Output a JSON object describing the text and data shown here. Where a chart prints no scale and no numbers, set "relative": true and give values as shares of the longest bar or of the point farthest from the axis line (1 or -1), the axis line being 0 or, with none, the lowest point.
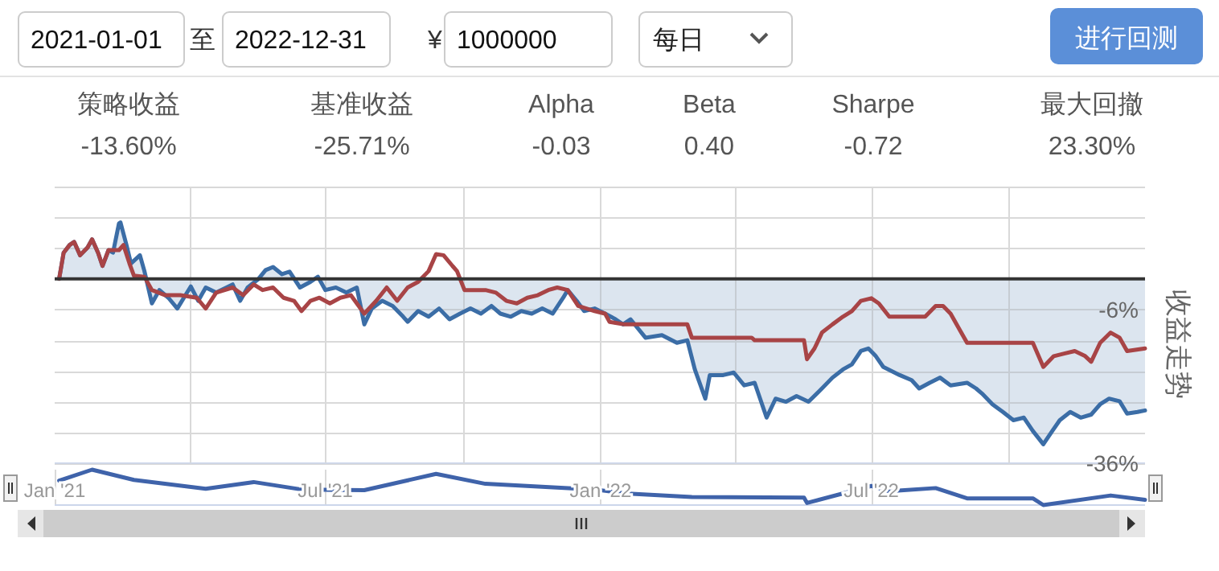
{
  "chart_data": [
    {
      "type": "other",
      "annotations": [
        "2021-01-01",
        "至",
        "2022-12-31",
        "¥",
        "1000000",
        "每日",
        "进行回测"
      ]
    },
    {
      "type": "other",
      "annotations": [
        "策略收益",
        "-13.60%",
        "基准收益",
        "-25.71%",
        "Alpha",
        "-0.03",
        "Beta",
        "0.40",
        "Sharpe",
        "-0.72",
        "最大回撤",
        "23.30%"
      ]
    },
    {
      "type": "line",
      "ylabel": "收益走势",
      "grid": true,
      "tick_labels": "y",
      "xlim": [
        "2021-01-01",
        "2022-12-31"
      ],
      "xticks": [
        {
          "value": "2021-04-01",
          "label": null
        },
        {
          "value": "2021-07-01",
          "label": null
        },
        {
          "value": "2021-10-01",
          "label": null
        },
        {
          "value": "2022-01-01",
          "label": null
        },
        {
          "value": "2022-04-01",
          "label": null
        },
        {
          "value": "2022-07-01",
          "label": null
        },
        {
          "value": "2022-10-01",
          "label": null
        }
      ],
      "ylim": [
        -36,
        18
      ],
      "yticks": [
        {
          "value": 18,
          "label": null
        },
        {
          "value": 12,
          "label": null
        },
        {
          "value": 6,
          "label": null
        },
        {
          "value": 0,
          "label": null
        },
        {
          "value": -6,
          "label": "-6%"
        },
        {
          "value": -12,
          "label": null
        },
        {
          "value": -18,
          "label": null
        },
        {
          "value": -24,
          "label": null
        },
        {
          "value": -30,
          "label": null
        },
        {
          "value": -36,
          "label": "-36%"
        }
      ],
      "ref_lines": [
        {
          "axis": "y",
          "value": 0,
          "color": "#333333"
        }
      ],
      "series": [
        {
          "type": "area",
          "color": "#3b6da6",
          "x": [
            "2021-01-04",
            "2021-01-07",
            "2021-01-11",
            "2021-01-14",
            "2021-01-18",
            "2021-01-23",
            "2021-01-26",
            "2021-01-30",
            "2021-02-02",
            "2021-02-06",
            "2021-02-09",
            "2021-02-13",
            "2021-02-14",
            "2021-02-18",
            "2021-02-21",
            "2021-02-27",
            "2021-03-02",
            "2021-03-07",
            "2021-03-12",
            "2021-03-18",
            "2021-03-24",
            "2021-04-02",
            "2021-04-07",
            "2021-04-12",
            "2021-04-19",
            "2021-04-30",
            "2021-05-05",
            "2021-05-10",
            "2021-05-17",
            "2021-05-22",
            "2021-05-27",
            "2021-06-02",
            "2021-06-07",
            "2021-06-14",
            "2021-06-21",
            "2021-06-26",
            "2021-07-01",
            "2021-07-08",
            "2021-07-15",
            "2021-07-22",
            "2021-07-27",
            "2021-08-01",
            "2021-08-08",
            "2021-08-15",
            "2021-08-22",
            "2021-08-25",
            "2021-09-01",
            "2021-09-08",
            "2021-09-15",
            "2021-09-22",
            "2021-09-29",
            "2021-10-06",
            "2021-10-13",
            "2021-10-20",
            "2021-10-26",
            "2021-11-02",
            "2021-11-09",
            "2021-11-16",
            "2021-11-23",
            "2021-11-30",
            "2021-12-07",
            "2021-12-10",
            "2021-12-16",
            "2021-12-21",
            "2021-12-28",
            "2022-01-04",
            "2022-01-11",
            "2022-01-16",
            "2022-01-21",
            "2022-01-31",
            "2022-02-11",
            "2022-02-21",
            "2022-02-28",
            "2022-03-05",
            "2022-03-12",
            "2022-03-15",
            "2022-03-24",
            "2022-03-31",
            "2022-04-07",
            "2022-04-14",
            "2022-04-22",
            "2022-04-28",
            "2022-05-05",
            "2022-05-12",
            "2022-05-20",
            "2022-05-29",
            "2022-06-05",
            "2022-06-12",
            "2022-06-18",
            "2022-06-24",
            "2022-06-29",
            "2022-07-04",
            "2022-07-09",
            "2022-07-20",
            "2022-07-28",
            "2022-08-02",
            "2022-08-09",
            "2022-08-16",
            "2022-08-23",
            "2022-09-03",
            "2022-09-09",
            "2022-09-13",
            "2022-09-20",
            "2022-09-27",
            "2022-10-04",
            "2022-10-11",
            "2022-10-17",
            "2022-10-24",
            "2022-10-30",
            "2022-11-04",
            "2022-11-11",
            "2022-11-18",
            "2022-11-25",
            "2022-12-01",
            "2022-12-07",
            "2022-12-14",
            "2022-12-19",
            "2022-12-26",
            "2022-12-31"
          ],
          "values": [
            0,
            5.1,
            6.6,
            7.2,
            4.6,
            6.1,
            7.7,
            5.1,
            2.5,
            5.6,
            5.1,
            10.8,
            11.0,
            6.6,
            3.0,
            4.6,
            1.5,
            -4.8,
            -2.2,
            -3.7,
            -5.8,
            -1.5,
            -4.3,
            -1.7,
            -2.7,
            -1.1,
            -4.3,
            -1.7,
            -0.1,
            1.7,
            2.3,
            0.9,
            1.4,
            -1.7,
            -0.6,
            0.4,
            -2.2,
            -1.7,
            -2.7,
            -1.7,
            -8.9,
            -5.8,
            -4.3,
            -5.3,
            -7.4,
            -8.4,
            -6.3,
            -7.4,
            -5.8,
            -7.9,
            -6.8,
            -5.8,
            -6.8,
            -5.3,
            -6.8,
            -7.4,
            -6.3,
            -6.8,
            -5.8,
            -6.8,
            -3.7,
            -2.2,
            -4.3,
            -6.3,
            -5.8,
            -6.8,
            -7.9,
            -8.9,
            -7.9,
            -11.5,
            -11.0,
            -12.5,
            -12.0,
            -17.7,
            -23.4,
            -18.8,
            -18.8,
            -18.3,
            -20.8,
            -20.3,
            -27.1,
            -23.4,
            -24.0,
            -22.9,
            -24.0,
            -21.4,
            -19.3,
            -17.7,
            -16.7,
            -14.1,
            -13.6,
            -15.1,
            -17.2,
            -18.8,
            -19.8,
            -21.4,
            -20.3,
            -19.3,
            -20.8,
            -20.3,
            -21.4,
            -22.4,
            -24.5,
            -26.0,
            -27.6,
            -27.1,
            -29.7,
            -32.3,
            -29.7,
            -27.6,
            -26.0,
            -27.1,
            -26.5,
            -24.5,
            -23.4,
            -23.9,
            -26.3,
            -26.0,
            -25.7
          ]
        },
        {
          "type": "line",
          "color": "#a84446",
          "x": [
            "2021-01-04",
            "2021-01-07",
            "2021-01-11",
            "2021-01-14",
            "2021-01-18",
            "2021-01-23",
            "2021-01-26",
            "2021-01-30",
            "2021-02-02",
            "2021-02-06",
            "2021-02-13",
            "2021-02-16",
            "2021-02-20",
            "2021-02-23",
            "2021-03-02",
            "2021-03-07",
            "2021-03-16",
            "2021-03-26",
            "2021-04-06",
            "2021-04-12",
            "2021-04-19",
            "2021-04-30",
            "2021-05-07",
            "2021-05-14",
            "2021-05-20",
            "2021-05-27",
            "2021-06-03",
            "2021-06-10",
            "2021-06-15",
            "2021-06-21",
            "2021-06-27",
            "2021-07-04",
            "2021-07-11",
            "2021-07-18",
            "2021-07-27",
            "2021-08-04",
            "2021-08-11",
            "2021-08-18",
            "2021-08-25",
            "2021-09-01",
            "2021-09-08",
            "2021-09-13",
            "2021-09-18",
            "2021-09-24",
            "2021-09-27",
            "2021-10-02",
            "2021-10-16",
            "2021-10-23",
            "2021-10-30",
            "2021-11-06",
            "2021-11-13",
            "2021-11-20",
            "2021-11-27",
            "2021-12-03",
            "2021-12-10",
            "2021-12-17",
            "2021-12-28",
            "2022-01-04",
            "2022-01-07",
            "2022-01-17",
            "2022-02-28",
            "2022-03-03",
            "2022-04-12",
            "2022-04-14",
            "2022-05-17",
            "2022-05-19",
            "2022-05-24",
            "2022-05-29",
            "2022-06-05",
            "2022-06-12",
            "2022-06-18",
            "2022-06-24",
            "2022-07-01",
            "2022-07-06",
            "2022-07-13",
            "2022-08-06",
            "2022-08-13",
            "2022-08-18",
            "2022-08-23",
            "2022-08-28",
            "2022-09-03",
            "2022-10-17",
            "2022-10-24",
            "2022-10-31",
            "2022-11-07",
            "2022-11-14",
            "2022-11-21",
            "2022-11-25",
            "2022-12-01",
            "2022-12-08",
            "2022-12-14",
            "2022-12-19",
            "2022-12-31"
          ],
          "values": [
            0,
            5.1,
            6.6,
            7.2,
            4.6,
            6.1,
            7.7,
            5.1,
            2.5,
            5.6,
            5.6,
            6.6,
            3.0,
            0.6,
            0.4,
            -2.2,
            -3.2,
            -3.2,
            -3.7,
            -5.8,
            -2.7,
            -1.7,
            -3.2,
            -1.1,
            -2.2,
            -1.7,
            -3.7,
            -4.3,
            -6.3,
            -4.3,
            -3.7,
            -4.8,
            -3.7,
            -3.2,
            -6.8,
            -4.3,
            -1.7,
            -4.3,
            -1.7,
            -0.6,
            1.5,
            4.8,
            4.6,
            2.5,
            1.5,
            -2.2,
            -2.2,
            -2.7,
            -4.3,
            -4.8,
            -3.7,
            -3.2,
            -2.2,
            -1.7,
            -2.2,
            -5.3,
            -6.3,
            -6.8,
            -8.4,
            -8.9,
            -8.9,
            -11.5,
            -11.5,
            -12.0,
            -12.0,
            -15.7,
            -13.6,
            -10.5,
            -8.9,
            -7.4,
            -6.3,
            -4.3,
            -3.8,
            -4.8,
            -7.4,
            -7.4,
            -5.3,
            -5.3,
            -6.8,
            -9.4,
            -12.5,
            -12.5,
            -17.2,
            -15.1,
            -14.6,
            -14.1,
            -15.1,
            -16.2,
            -12.5,
            -10.5,
            -11.5,
            -14.1,
            -13.6
          ]
        }
      ]
    },
    {
      "type": "line",
      "relative": true,
      "grid": "x",
      "tick_labels": "x",
      "xlim": [
        "2021-01-01",
        "2022-12-31"
      ],
      "xticks": [
        {
          "value": "2021-01-01",
          "label": "Jan '21"
        },
        {
          "value": "2021-07-01",
          "label": "Jul '21"
        },
        {
          "value": "2022-01-01",
          "label": "Jan '22"
        },
        {
          "value": "2022-07-01",
          "label": "Jul '22"
        }
      ],
      "series": [
        {
          "color": "#3f63aa",
          "x": [
            "2021-01-04",
            "2021-01-26",
            "2021-02-23",
            "2021-04-12",
            "2021-05-14",
            "2021-06-15",
            "2021-07-27",
            "2021-09-13",
            "2021-10-16",
            "2021-12-28",
            "2022-01-17",
            "2022-03-03",
            "2022-05-17",
            "2022-05-19",
            "2022-07-01",
            "2022-07-13",
            "2022-08-13",
            "2022-09-03",
            "2022-10-17",
            "2022-10-24",
            "2022-12-08",
            "2022-12-31"
          ],
          "values": [
            0.69,
            1.0,
            0.71,
            0.46,
            0.65,
            0.44,
            0.42,
            0.88,
            0.6,
            0.44,
            0.33,
            0.23,
            0.21,
            0.06,
            0.54,
            0.39,
            0.48,
            0.19,
            0.19,
            0,
            0.27,
            0.15
          ]
        }
      ]
    }
  ]
}
